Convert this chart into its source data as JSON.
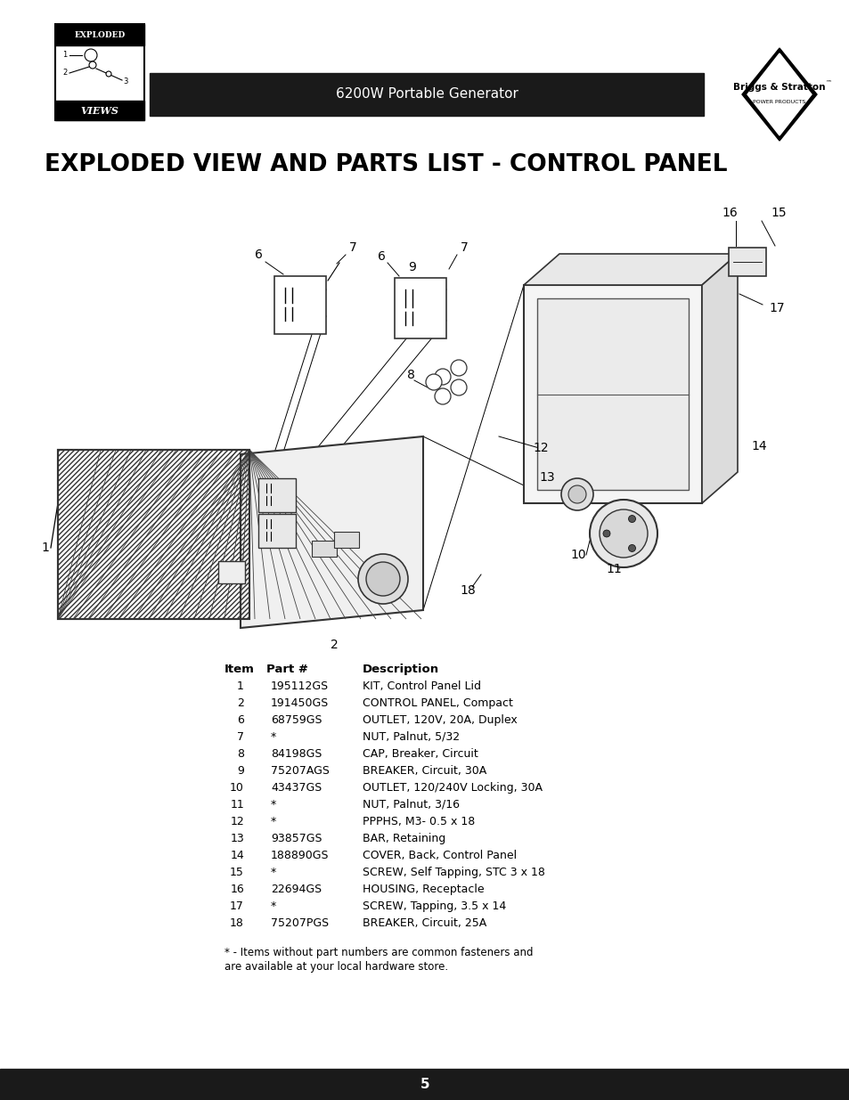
{
  "page_title": "EXPLODED VIEW AND PARTS LIST - CONTROL PANEL",
  "header_text": "6200W Portable Generator",
  "page_number": "5",
  "bg_color": "#ffffff",
  "header_bg": "#1a1a1a",
  "header_text_color": "#ffffff",
  "title_color": "#000000",
  "title_fontsize": 19,
  "parts_table": {
    "rows": [
      [
        "1",
        "195112GS",
        "KIT, Control Panel Lid"
      ],
      [
        "2",
        "191450GS",
        "CONTROL PANEL, Compact"
      ],
      [
        "6",
        "68759GS",
        "OUTLET, 120V, 20A, Duplex"
      ],
      [
        "7",
        "*",
        "NUT, Palnut, 5/32"
      ],
      [
        "8",
        "84198GS",
        "CAP, Breaker, Circuit"
      ],
      [
        "9",
        "75207AGS",
        "BREAKER, Circuit, 30A"
      ],
      [
        "10",
        "43437GS",
        "OUTLET, 120/240V Locking, 30A"
      ],
      [
        "11",
        "*",
        "NUT, Palnut, 3/16"
      ],
      [
        "12",
        "*",
        "PPPHS, M3- 0.5 x 18"
      ],
      [
        "13",
        "93857GS",
        "BAR, Retaining"
      ],
      [
        "14",
        "188890GS",
        "COVER, Back, Control Panel"
      ],
      [
        "15",
        "*",
        "SCREW, Self Tapping, STC 3 x 18"
      ],
      [
        "16",
        "22694GS",
        "HOUSING, Receptacle"
      ],
      [
        "17",
        "*",
        "SCREW, Tapping, 3.5 x 14"
      ],
      [
        "18",
        "75207PGS",
        "BREAKER, Circuit, 25A"
      ]
    ]
  },
  "footnote1": "* - Items without part numbers are common fasteners and",
  "footnote2": "are available at your local hardware store.",
  "footer_bg": "#1a1a1a",
  "footer_text_color": "#ffffff",
  "footer_text": "5"
}
